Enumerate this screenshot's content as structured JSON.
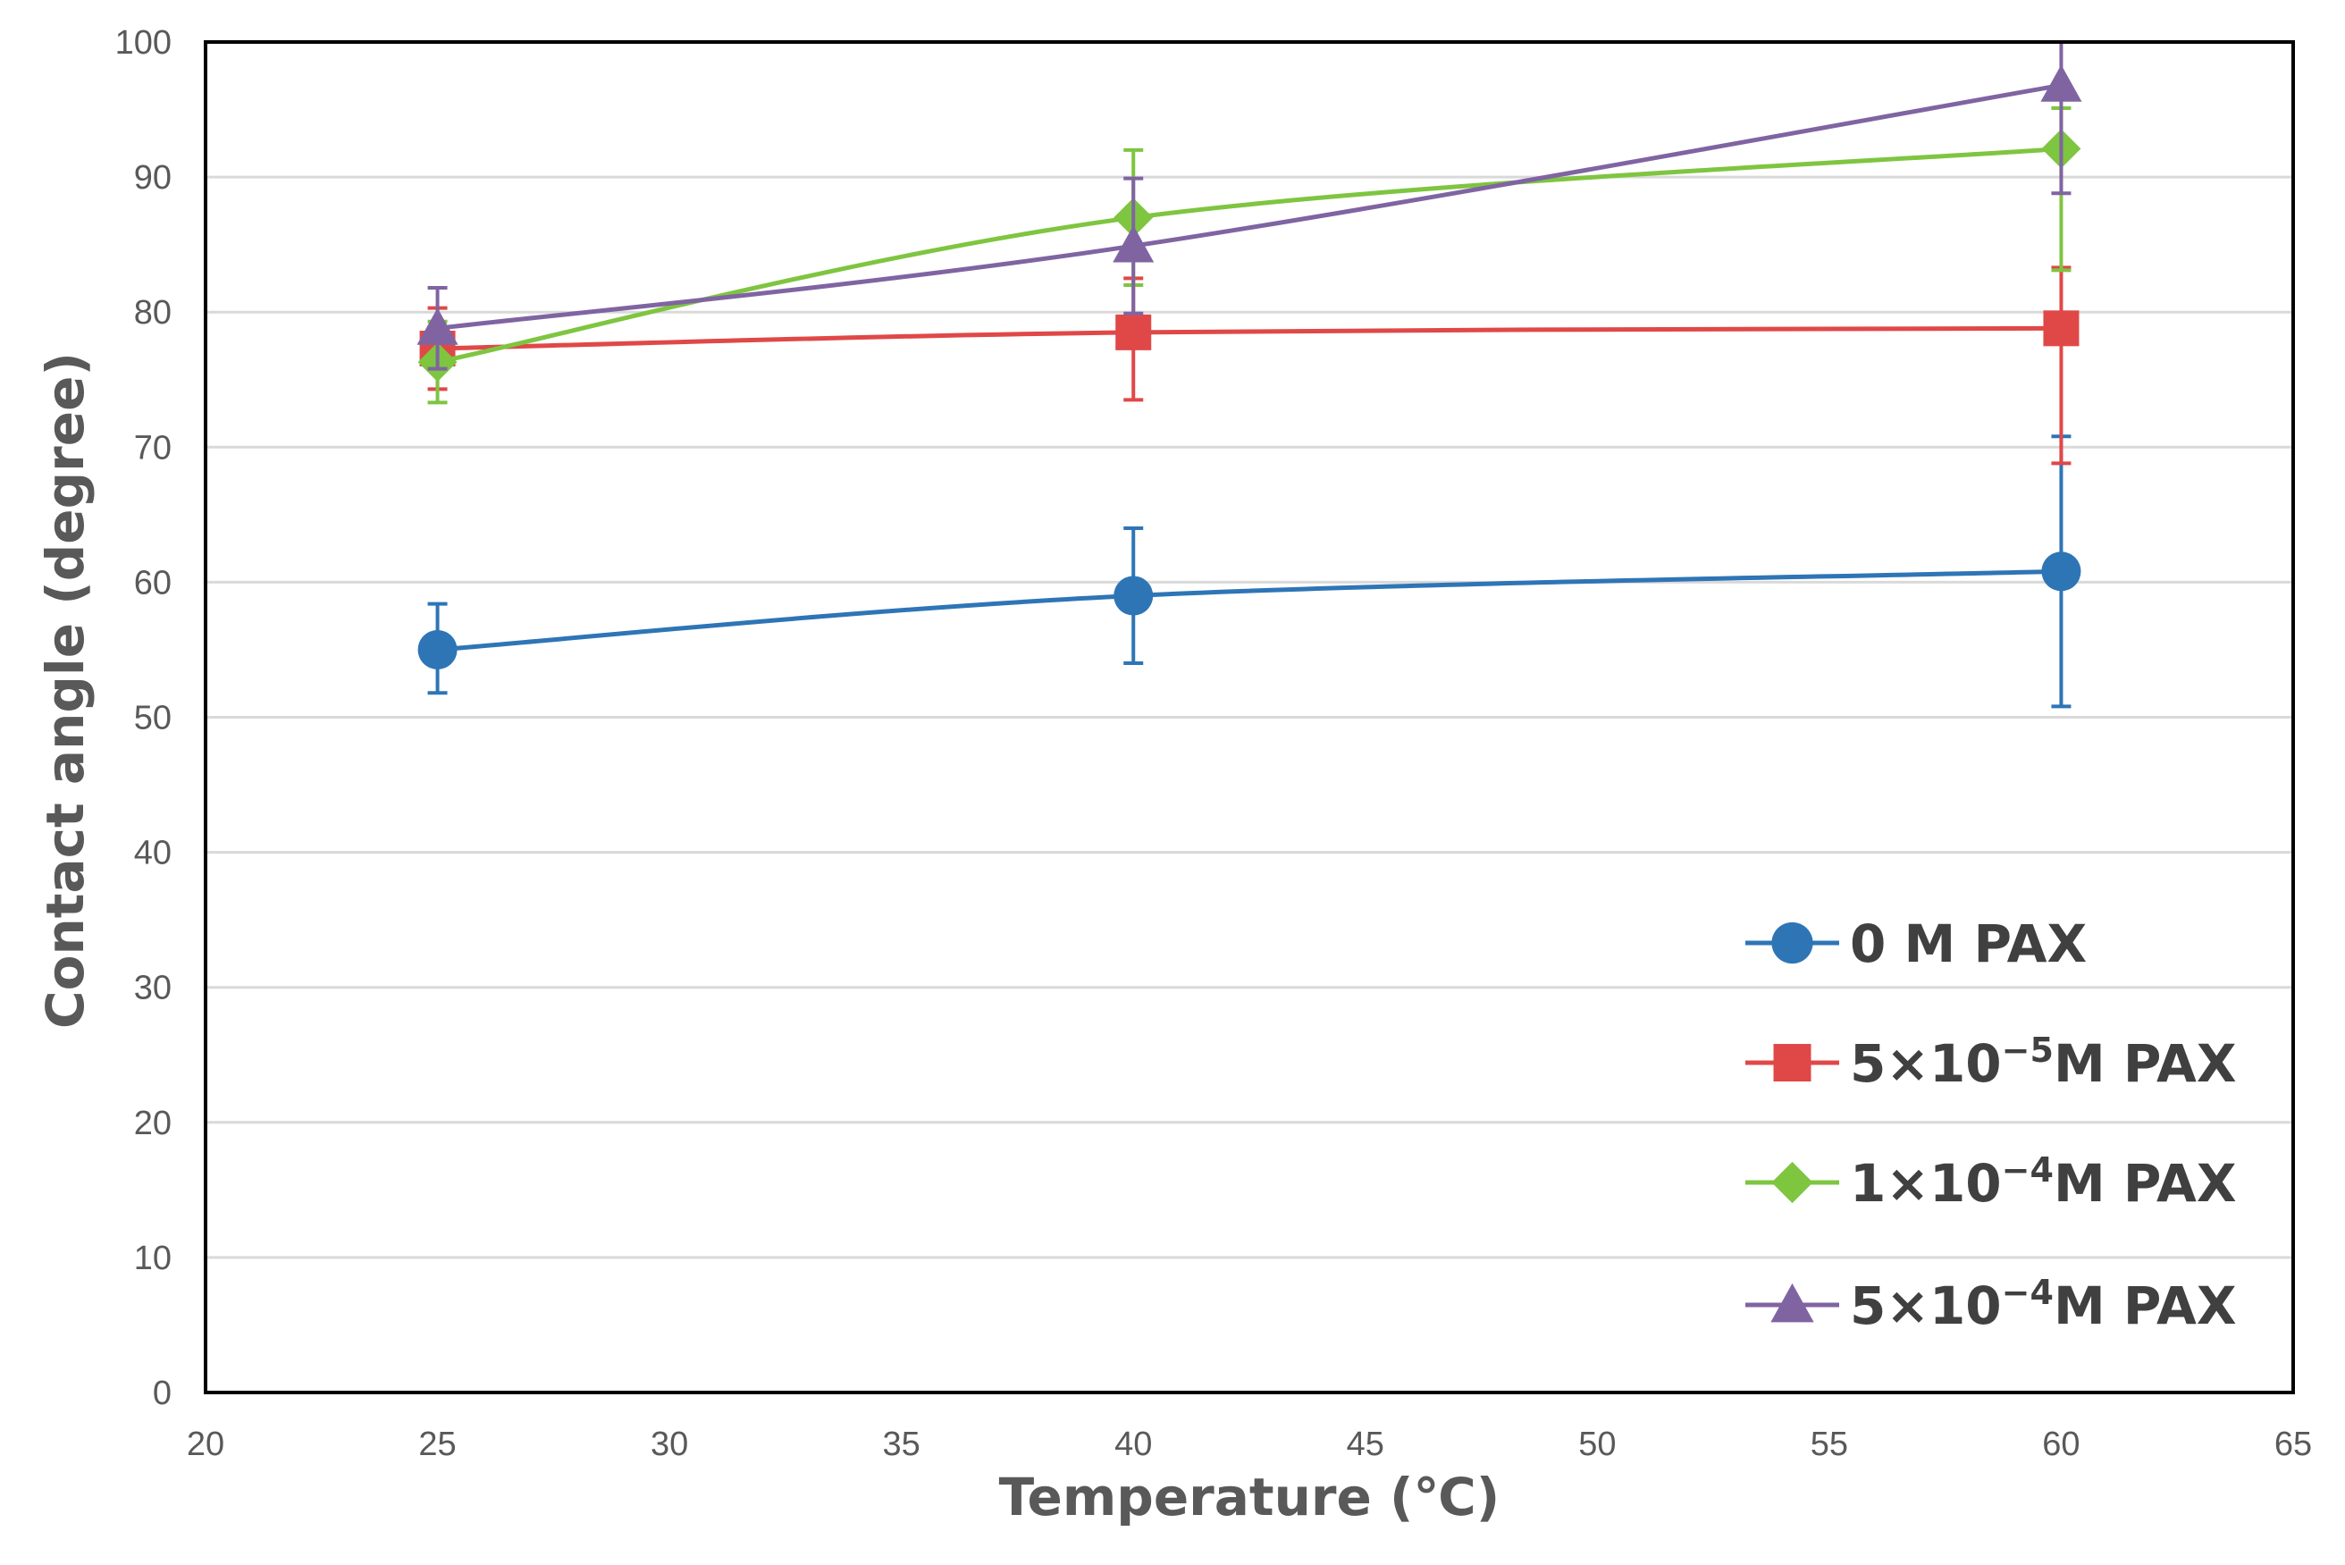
{
  "chart_data": {
    "type": "line",
    "title": "",
    "xlabel": "Temperature (℃)",
    "ylabel": "Contact angle (degree)",
    "xlim": [
      20,
      65
    ],
    "ylim": [
      0,
      100
    ],
    "xticks": [
      20,
      25,
      30,
      35,
      40,
      45,
      50,
      55,
      60,
      65
    ],
    "yticks": [
      0,
      10,
      20,
      30,
      40,
      50,
      60,
      70,
      80,
      90,
      100
    ],
    "grid": "horizontal",
    "legend_position": "bottom-right",
    "series": [
      {
        "name": "0 M PAX",
        "legend_parts": [
          "0 M PAX"
        ],
        "color": "#2e75b6",
        "marker": "circle",
        "x": [
          25,
          40,
          60
        ],
        "y": [
          55.0,
          59.0,
          60.8
        ],
        "err_low": [
          3.2,
          5.0,
          10.0
        ],
        "err_high": [
          3.4,
          5.0,
          10.0
        ]
      },
      {
        "name": "5×10⁻⁵M PAX",
        "legend_parts": [
          "5×10",
          "−5",
          "M PAX"
        ],
        "color": "#e04848",
        "marker": "square",
        "x": [
          25,
          40,
          60
        ],
        "y": [
          77.3,
          78.5,
          78.8
        ],
        "err_low": [
          3.0,
          5.0,
          10.0
        ],
        "err_high": [
          3.0,
          4.0,
          4.5
        ]
      },
      {
        "name": "1×10⁻⁴M PAX",
        "legend_parts": [
          "1×10",
          "−4",
          "M PAX"
        ],
        "color": "#7ec540",
        "marker": "diamond",
        "x": [
          25,
          40,
          60
        ],
        "y": [
          76.3,
          87.0,
          92.1
        ],
        "err_low": [
          3.0,
          5.0,
          9.0
        ],
        "err_high": [
          3.0,
          5.0,
          3.0
        ]
      },
      {
        "name": "5×10⁻⁴M PAX",
        "legend_parts": [
          "5×10",
          "−4",
          "M PAX"
        ],
        "color": "#8064a2",
        "marker": "triangle",
        "x": [
          25,
          40,
          60
        ],
        "y": [
          78.8,
          84.9,
          96.8
        ],
        "err_low": [
          3.0,
          5.0,
          8.0
        ],
        "err_high": [
          3.0,
          5.0,
          3.2
        ]
      }
    ]
  }
}
